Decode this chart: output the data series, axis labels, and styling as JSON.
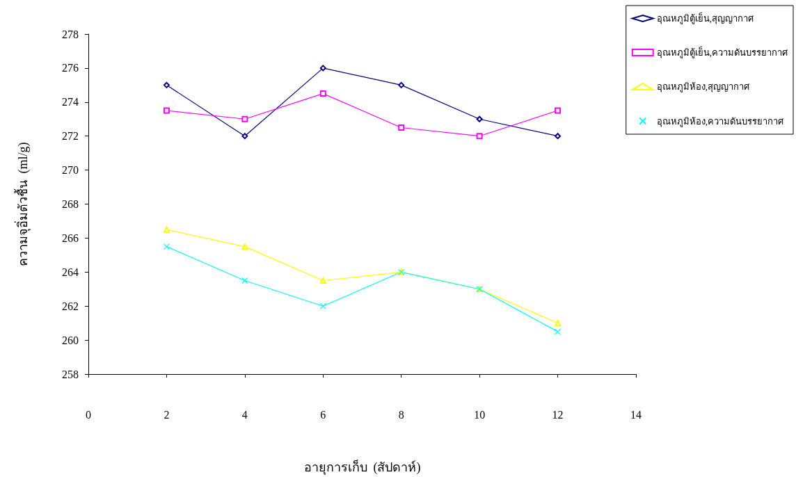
{
  "chart_data": {
    "type": "line",
    "xlabel": "อายุการเก็บ  (สัปดาห์)",
    "ylabel": "ความจุอิ่มตัวชื้น  (ml/g)",
    "x": [
      2,
      4,
      6,
      8,
      10,
      12
    ],
    "series": [
      {
        "name": "อุณหภูมิตู้เย็น,สุญญากาศ",
        "color": "#000080",
        "marker": "diamond",
        "values": [
          275,
          272,
          276,
          275,
          273,
          272
        ]
      },
      {
        "name": "อุณหภูมิตู้เย็น,ความดันบรรยากาศ",
        "color": "#ff00ff",
        "marker": "square",
        "values": [
          273.5,
          273,
          274.5,
          272.5,
          272,
          273.5
        ]
      },
      {
        "name": "อุณหภูมิห้อง,สุญญากาศ",
        "color": "#ffff00",
        "marker": "triangle",
        "values": [
          266.5,
          265.5,
          263.5,
          264,
          263,
          261
        ]
      },
      {
        "name": "อุณหภูมิห้อง,ความดันบรรยากาศ",
        "color": "#00ffff",
        "marker": "cross",
        "values": [
          265.5,
          263.5,
          262,
          264,
          263,
          260.5
        ]
      }
    ],
    "xlim": [
      0,
      14
    ],
    "xticks": [
      0,
      2,
      4,
      6,
      8,
      10,
      12,
      14
    ],
    "ylim": [
      258,
      278
    ],
    "yticks": [
      258,
      260,
      262,
      264,
      266,
      268,
      270,
      272,
      274,
      276,
      278
    ],
    "grid": false,
    "legend": "top right",
    "line_style": "solid"
  }
}
